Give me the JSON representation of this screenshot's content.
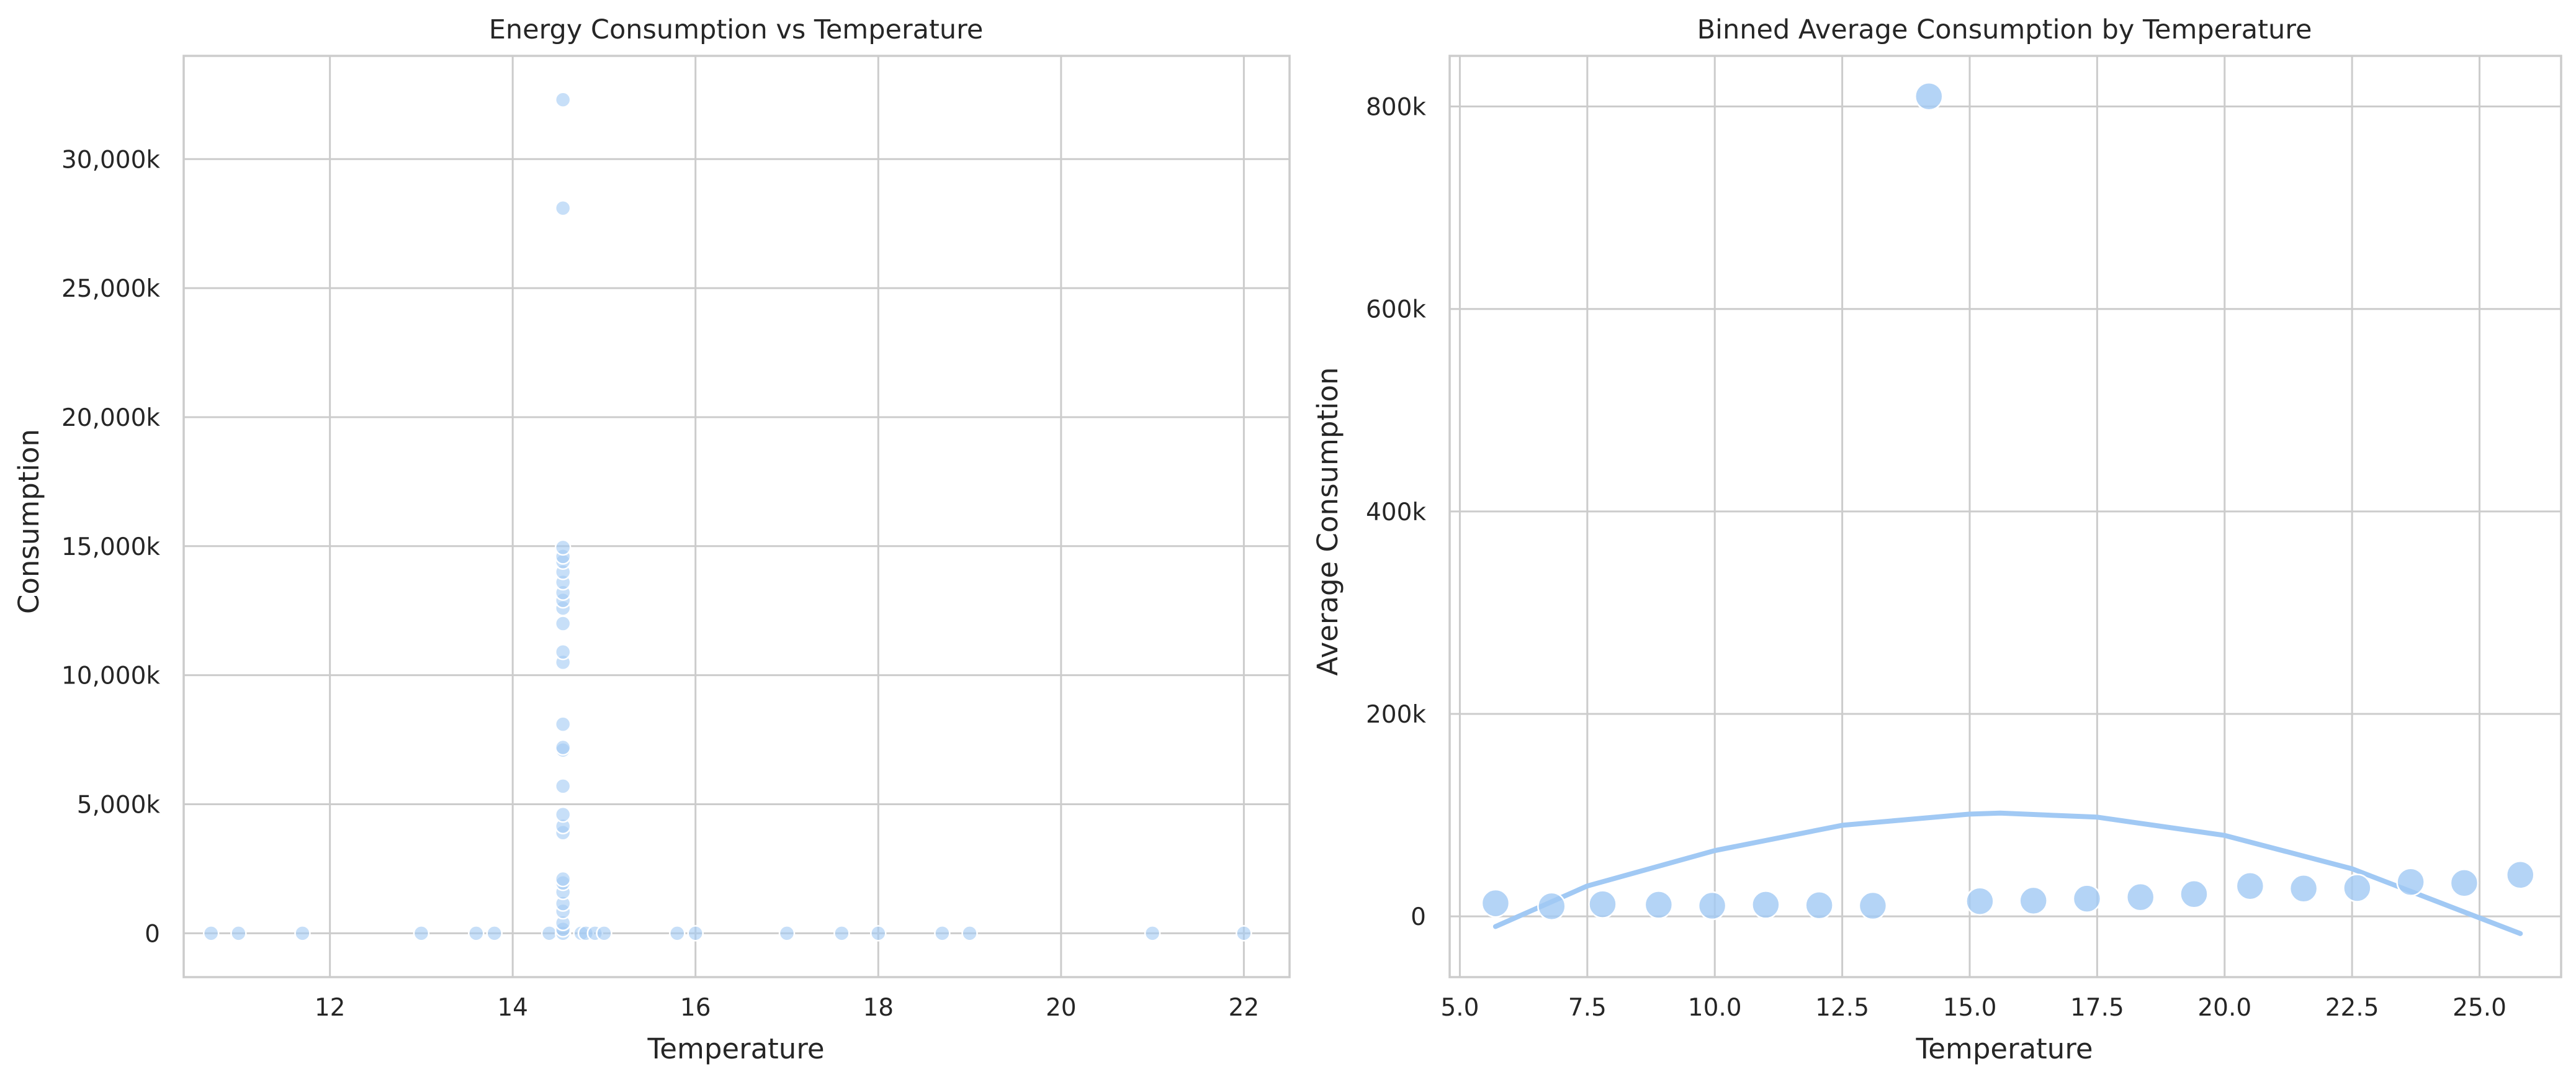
{
  "chart_data": [
    {
      "type": "scatter",
      "title": "Energy Consumption vs Temperature",
      "xlabel": "Temperature",
      "ylabel": "Consumption",
      "xlim": [
        10.4,
        22.5
      ],
      "ylim": [
        -1700,
        34000
      ],
      "xticks": [
        12,
        14,
        16,
        18,
        20,
        22
      ],
      "xtick_labels": [
        "12",
        "14",
        "16",
        "18",
        "20",
        "22"
      ],
      "yticks": [
        0,
        5000,
        10000,
        15000,
        20000,
        25000,
        30000
      ],
      "ytick_labels": [
        "0",
        "5,000k",
        "10,000k",
        "15,000k",
        "20,000k",
        "25,000k",
        "30,000k"
      ],
      "y_unit": "thousands",
      "grid": true,
      "point_color": "#a1c9f4",
      "points": [
        {
          "x": 10.7,
          "y": 0
        },
        {
          "x": 11.0,
          "y": 0
        },
        {
          "x": 11.7,
          "y": 0
        },
        {
          "x": 13.0,
          "y": 0
        },
        {
          "x": 13.6,
          "y": 0
        },
        {
          "x": 13.8,
          "y": 0
        },
        {
          "x": 14.4,
          "y": 0
        },
        {
          "x": 14.55,
          "y": 0
        },
        {
          "x": 14.55,
          "y": 150
        },
        {
          "x": 14.55,
          "y": 400
        },
        {
          "x": 14.55,
          "y": 850
        },
        {
          "x": 14.55,
          "y": 1150
        },
        {
          "x": 14.55,
          "y": 1600
        },
        {
          "x": 14.55,
          "y": 1950
        },
        {
          "x": 14.55,
          "y": 2100
        },
        {
          "x": 14.55,
          "y": 3900
        },
        {
          "x": 14.55,
          "y": 4150
        },
        {
          "x": 14.55,
          "y": 4600
        },
        {
          "x": 14.55,
          "y": 5700
        },
        {
          "x": 14.55,
          "y": 7100
        },
        {
          "x": 14.55,
          "y": 7200
        },
        {
          "x": 14.55,
          "y": 8100
        },
        {
          "x": 14.55,
          "y": 10500
        },
        {
          "x": 14.55,
          "y": 10900
        },
        {
          "x": 14.55,
          "y": 12000
        },
        {
          "x": 14.55,
          "y": 12600
        },
        {
          "x": 14.55,
          "y": 12900
        },
        {
          "x": 14.55,
          "y": 13200
        },
        {
          "x": 14.55,
          "y": 13600
        },
        {
          "x": 14.55,
          "y": 14000
        },
        {
          "x": 14.55,
          "y": 14400
        },
        {
          "x": 14.55,
          "y": 14600
        },
        {
          "x": 14.55,
          "y": 14950
        },
        {
          "x": 14.55,
          "y": 28100
        },
        {
          "x": 14.55,
          "y": 32300
        },
        {
          "x": 14.75,
          "y": 0
        },
        {
          "x": 14.8,
          "y": 0
        },
        {
          "x": 14.9,
          "y": 0
        },
        {
          "x": 15.0,
          "y": 0
        },
        {
          "x": 15.8,
          "y": 0
        },
        {
          "x": 16.0,
          "y": 0
        },
        {
          "x": 17.0,
          "y": 0
        },
        {
          "x": 17.6,
          "y": 0
        },
        {
          "x": 18.0,
          "y": 0
        },
        {
          "x": 18.7,
          "y": 0
        },
        {
          "x": 19.0,
          "y": 0
        },
        {
          "x": 21.0,
          "y": 0
        },
        {
          "x": 22.0,
          "y": 0
        }
      ]
    },
    {
      "type": "scatter",
      "title": "Binned Average Consumption by Temperature",
      "xlabel": "Temperature",
      "ylabel": "Average Consumption",
      "xlim": [
        4.8,
        26.6
      ],
      "ylim": [
        -60000,
        850000
      ],
      "xticks": [
        5.0,
        7.5,
        10.0,
        12.5,
        15.0,
        17.5,
        20.0,
        22.5,
        25.0
      ],
      "xtick_labels": [
        "5.0",
        "7.5",
        "10.0",
        "12.5",
        "15.0",
        "17.5",
        "20.0",
        "22.5",
        "25.0"
      ],
      "yticks": [
        0,
        200000,
        400000,
        600000,
        800000
      ],
      "ytick_labels": [
        "0",
        "200k",
        "400k",
        "600k",
        "800k"
      ],
      "y_unit": "thousands",
      "grid": true,
      "point_color": "#a1c9f4",
      "line_color": "#a1c9f4",
      "points": [
        {
          "x": 5.7,
          "y": 13000
        },
        {
          "x": 6.8,
          "y": 10000
        },
        {
          "x": 7.8,
          "y": 12000
        },
        {
          "x": 8.9,
          "y": 11500
        },
        {
          "x": 9.95,
          "y": 10500
        },
        {
          "x": 11.0,
          "y": 11500
        },
        {
          "x": 12.05,
          "y": 11000
        },
        {
          "x": 13.1,
          "y": 10500
        },
        {
          "x": 14.2,
          "y": 810000
        },
        {
          "x": 15.2,
          "y": 15000
        },
        {
          "x": 16.25,
          "y": 15500
        },
        {
          "x": 17.3,
          "y": 17500
        },
        {
          "x": 18.35,
          "y": 19000
        },
        {
          "x": 19.4,
          "y": 22000
        },
        {
          "x": 20.5,
          "y": 30000
        },
        {
          "x": 21.55,
          "y": 27500
        },
        {
          "x": 22.6,
          "y": 28000
        },
        {
          "x": 23.65,
          "y": 34000
        },
        {
          "x": 24.7,
          "y": 33000
        },
        {
          "x": 25.8,
          "y": 41000
        }
      ],
      "fit_curve": {
        "x": [
          5.7,
          7.5,
          10.0,
          12.5,
          15.0,
          15.6,
          17.5,
          20.0,
          22.5,
          25.8
        ],
        "y": [
          -10000,
          30000,
          65000,
          90000,
          101000,
          102000,
          98000,
          80000,
          47000,
          -17000
        ]
      }
    }
  ]
}
